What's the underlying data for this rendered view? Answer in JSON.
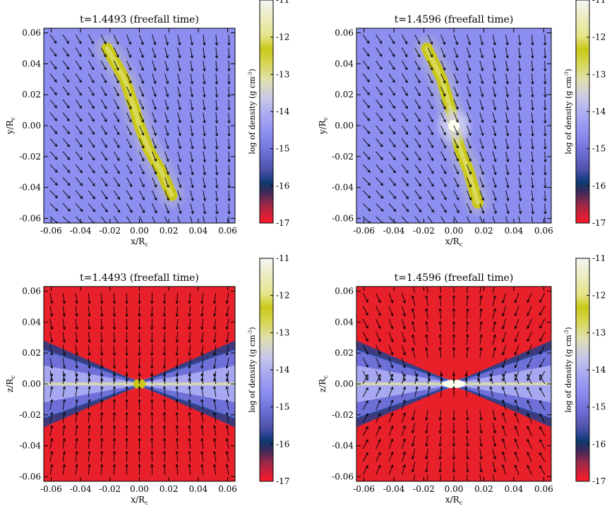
{
  "chart_data": [
    {
      "type": "heatmap",
      "title": "t=1.4493 (freefall time)",
      "xlabel": "x/R",
      "xlabel_sub": "c",
      "ylabel": "y/R",
      "ylabel_sub": "c",
      "xlim": [
        -0.065,
        0.065
      ],
      "ylim": [
        -0.063,
        0.063
      ],
      "xticks": [
        "-0.06",
        "-0.04",
        "-0.02",
        "0.00",
        "0.02",
        "0.04",
        "0.06"
      ],
      "yticks": [
        "-0.06",
        "-0.04",
        "-0.02",
        "0.00",
        "0.02",
        "0.04",
        "0.06"
      ],
      "background": "#8c8ef0",
      "features": [
        {
          "kind": "filament",
          "points": [
            [
              -0.022,
              0.05
            ],
            [
              -0.01,
              0.03
            ],
            [
              -0.003,
              0.01
            ],
            [
              0.0,
              0.0
            ],
            [
              0.006,
              -0.015
            ],
            [
              0.015,
              -0.03
            ],
            [
              0.022,
              -0.045
            ]
          ],
          "color": "#c9c81a"
        }
      ],
      "vectors": "converging_filament",
      "colorbar": {
        "label": "log of density (g cm",
        "label_sup": "-3",
        "label_end": ")",
        "range": [
          -17,
          -11
        ],
        "ticks": [
          "-11",
          "-12",
          "-13",
          "-14",
          "-15",
          "-16",
          "-17"
        ]
      }
    },
    {
      "type": "heatmap",
      "title": "t=1.4596 (freefall time)",
      "xlabel": "x/R",
      "xlabel_sub": "c",
      "ylabel": "y/R",
      "ylabel_sub": "c",
      "xlim": [
        -0.065,
        0.065
      ],
      "ylim": [
        -0.063,
        0.063
      ],
      "xticks": [
        "-0.06",
        "-0.04",
        "-0.02",
        "0.00",
        "0.02",
        "0.04",
        "0.06"
      ],
      "yticks": [
        "-0.06",
        "-0.04",
        "-0.02",
        "0.00",
        "0.02",
        "0.04",
        "0.06"
      ],
      "background": "#8c8ef0",
      "features": [
        {
          "kind": "filament",
          "points": [
            [
              -0.018,
              0.05
            ],
            [
              -0.008,
              0.03
            ],
            [
              -0.002,
              0.01
            ],
            [
              0.0,
              0.0
            ],
            [
              0.004,
              -0.015
            ],
            [
              0.01,
              -0.03
            ],
            [
              0.016,
              -0.05
            ]
          ],
          "color": "#c9c81a"
        },
        {
          "kind": "core",
          "center": [
            0.0,
            0.0
          ],
          "color": "#fffff0"
        }
      ],
      "vectors": "converging_filament",
      "colorbar": {
        "label": "log of density (g cm",
        "label_sup": "-3",
        "label_end": ")",
        "range": [
          -17,
          -11
        ],
        "ticks": [
          "-11",
          "-12",
          "-13",
          "-14",
          "-15",
          "-16",
          "-17"
        ]
      }
    },
    {
      "type": "heatmap",
      "title": "t=1.4493 (freefall time)",
      "xlabel": "x/R",
      "xlabel_sub": "c",
      "ylabel": "z/R",
      "ylabel_sub": "c",
      "xlim": [
        -0.065,
        0.065
      ],
      "ylim": [
        -0.063,
        0.063
      ],
      "xticks": [
        "-0.06",
        "-0.04",
        "-0.02",
        "0.00",
        "0.02",
        "0.04",
        "0.06"
      ],
      "yticks": [
        "-0.06",
        "-0.04",
        "-0.02",
        "0.00",
        "0.02",
        "0.04",
        "0.06"
      ],
      "background": "#e8202a",
      "features": [
        {
          "kind": "disk",
          "center": [
            0.0,
            0.0
          ],
          "color": "#c9c81a"
        }
      ],
      "vectors": "vertical_infall",
      "colorbar": {
        "label": "log of density (g cm",
        "label_sup": "-3",
        "label_end": ")",
        "range": [
          -17,
          -11
        ],
        "ticks": [
          "-11",
          "-12",
          "-13",
          "-14",
          "-15",
          "-16",
          "-17"
        ]
      }
    },
    {
      "type": "heatmap",
      "title": "t=1.4596 (freefall time)",
      "xlabel": "x/R",
      "xlabel_sub": "c",
      "ylabel": "z/R",
      "ylabel_sub": "c",
      "xlim": [
        -0.065,
        0.065
      ],
      "ylim": [
        -0.063,
        0.063
      ],
      "xticks": [
        "-0.06",
        "-0.04",
        "-0.02",
        "0.00",
        "0.02",
        "0.04",
        "0.06"
      ],
      "yticks": [
        "-0.06",
        "-0.04",
        "-0.02",
        "0.00",
        "0.02",
        "0.04",
        "0.06"
      ],
      "background": "#e8202a",
      "features": [
        {
          "kind": "core",
          "center": [
            0.0,
            0.0
          ],
          "color": "#fffff0"
        }
      ],
      "vectors": "bipolar_outflow",
      "colorbar": {
        "label": "log of density (g cm",
        "label_sup": "-3",
        "label_end": ")",
        "range": [
          -17,
          -11
        ],
        "ticks": [
          "-11",
          "-12",
          "-13",
          "-14",
          "-15",
          "-16",
          "-17"
        ]
      }
    }
  ]
}
